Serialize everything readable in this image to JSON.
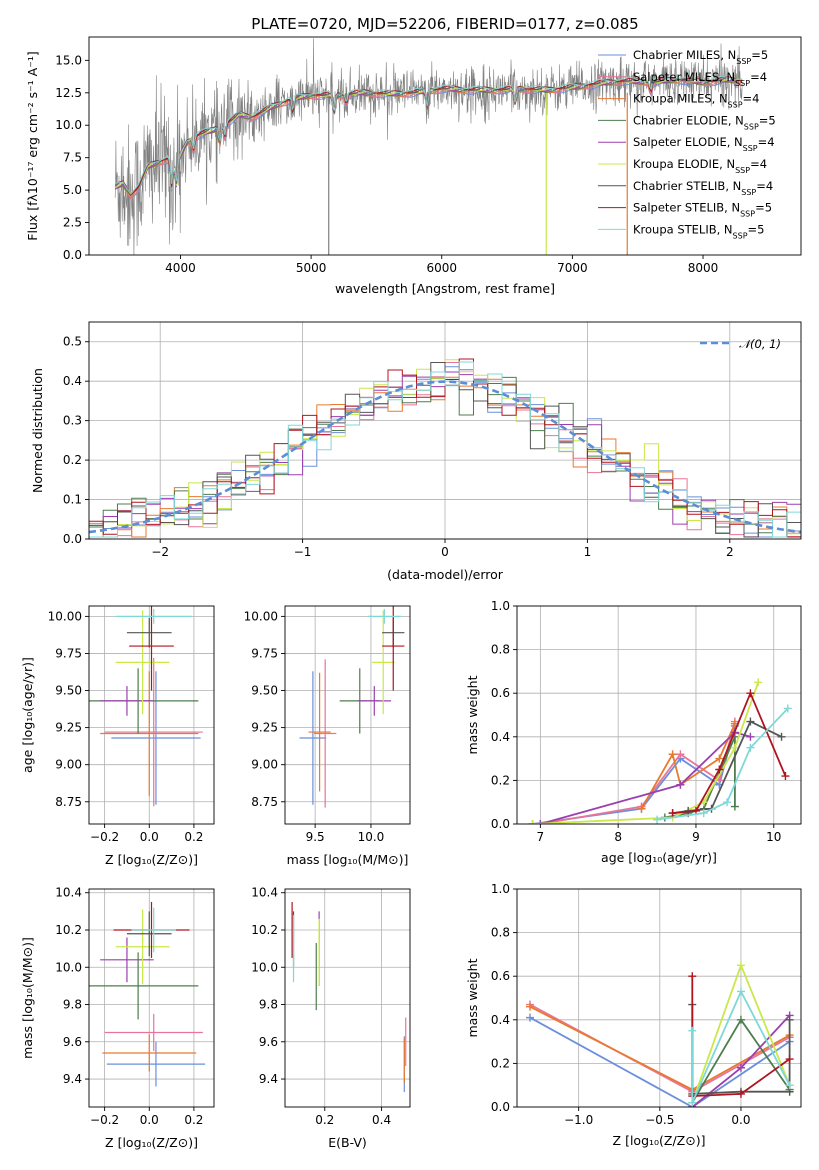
{
  "colors": {
    "chabrier_miles": "#6a8fdc",
    "salpeter_miles": "#e8749a",
    "kroupa_miles": "#e87a2e",
    "chabrier_elodie": "#4e7d4e",
    "salpeter_elodie": "#9b3fae",
    "kroupa_elodie": "#c9e84a",
    "chabrier_stelib": "#555555",
    "salpeter_stelib": "#b0141e",
    "kroupa_stelib": "#7fd8d8",
    "observed": "#808080",
    "gaussian": "#5b8ed6"
  },
  "chart_data": [
    {
      "type": "line",
      "id": "spectrum",
      "title": "PLATE=0720, MJD=52206, FIBERID=0177, z=0.085",
      "xlabel": "wavelength [Angstrom, rest frame]",
      "ylabel": "Flux [fλ10⁻¹⁷ erg cm⁻² s⁻¹ A⁻¹]",
      "xlim": [
        3300,
        8750
      ],
      "ylim": [
        0,
        16.8
      ],
      "xticks": [
        "4000",
        "5000",
        "6000",
        "7000",
        "8000"
      ],
      "yticks": [
        "0.0",
        "2.5",
        "5.0",
        "7.5",
        "10.0",
        "12.5",
        "15.0"
      ],
      "legend_position": "upper-right",
      "continuum": {
        "x": [
          3500,
          3560,
          3620,
          3680,
          3750,
          3820,
          3900,
          3960,
          4050,
          4150,
          4250,
          4350,
          4450,
          4550,
          4700,
          4850,
          5000,
          5200,
          5400,
          5600,
          5800,
          6000,
          6200,
          6400,
          6600,
          6800,
          7000,
          7200,
          7400,
          7600,
          7800,
          8000,
          8200,
          8300
        ],
        "y": [
          5.2,
          5.5,
          4.6,
          5.2,
          6.8,
          7.1,
          7.4,
          6.8,
          8.7,
          9.3,
          9.6,
          10.1,
          10.8,
          10.6,
          11.4,
          12.0,
          12.3,
          12.3,
          12.5,
          12.4,
          12.5,
          12.8,
          12.7,
          12.7,
          12.8,
          12.7,
          12.9,
          13.2,
          13.4,
          13.3,
          13.5,
          13.3,
          13.5,
          13.4
        ]
      },
      "legend": [
        {
          "label": "Chabrier MILES, N",
          "sub": "SSP",
          "n": "=5",
          "color_key": "chabrier_miles"
        },
        {
          "label": "Salpeter MILES, N",
          "sub": "SSP",
          "n": "=4",
          "color_key": "salpeter_miles"
        },
        {
          "label": "Kroupa MILES, N",
          "sub": "SSP",
          "n": "=4",
          "color_key": "kroupa_miles"
        },
        {
          "label": "Chabrier ELODIE, N",
          "sub": "SSP",
          "n": "=5",
          "color_key": "chabrier_elodie"
        },
        {
          "label": "Salpeter ELODIE, N",
          "sub": "SSP",
          "n": "=4",
          "color_key": "salpeter_elodie"
        },
        {
          "label": "Kroupa ELODIE, N",
          "sub": "SSP",
          "n": "=4",
          "color_key": "kroupa_elodie"
        },
        {
          "label": "Chabrier STELIB, N",
          "sub": "SSP",
          "n": "=4",
          "color_key": "chabrier_stelib"
        },
        {
          "label": "Salpeter STELIB, N",
          "sub": "SSP",
          "n": "=5",
          "color_key": "salpeter_stelib"
        },
        {
          "label": "Kroupa STELIB, N",
          "sub": "SSP",
          "n": "=5",
          "color_key": "kroupa_stelib"
        }
      ]
    },
    {
      "type": "area",
      "id": "residuals",
      "xlabel": "(data-model)/error",
      "ylabel": "Normed distribution",
      "xlim": [
        -2.5,
        2.5
      ],
      "ylim": [
        0,
        0.55
      ],
      "xticks": [
        "−2",
        "−1",
        "0",
        "1",
        "2"
      ],
      "yticks": [
        "0.0",
        "0.1",
        "0.2",
        "0.3",
        "0.4",
        "0.5"
      ],
      "grid": true,
      "bin_width": 0.1,
      "gaussian_label": "𝒩(0, 1)",
      "gaussian": {
        "mean": 0,
        "sigma": 1
      }
    },
    {
      "type": "scatter",
      "id": "age_vs_z",
      "xlabel": "Z [log₁₀(Z/Z⊙)]",
      "ylabel": "age  [log₁₀(age/yr)]",
      "xlim": [
        -0.27,
        0.29
      ],
      "ylim": [
        8.6,
        10.07
      ],
      "xticks": [
        "−0.2",
        "0.0",
        "0.2"
      ],
      "yticks": [
        "8.75",
        "9.00",
        "9.25",
        "9.50",
        "9.75",
        "10.00"
      ],
      "grid": true,
      "points": [
        {
          "x": 0.03,
          "y": 9.18,
          "ex": 0.2,
          "ey": 0.45,
          "color_key": "chabrier_miles"
        },
        {
          "x": 0.02,
          "y": 9.22,
          "ex": 0.22,
          "ey": 0.5,
          "color_key": "salpeter_miles"
        },
        {
          "x": 0.0,
          "y": 9.21,
          "ex": 0.22,
          "ey": 0.42,
          "color_key": "kroupa_miles"
        },
        {
          "x": -0.05,
          "y": 9.43,
          "ex": 0.27,
          "ey": 0.22,
          "color_key": "chabrier_elodie"
        },
        {
          "x": -0.1,
          "y": 9.43,
          "ex": 0.12,
          "ey": 0.1,
          "color_key": "salpeter_elodie"
        },
        {
          "x": -0.03,
          "y": 9.69,
          "ex": 0.12,
          "ey": 0.35,
          "color_key": "kroupa_elodie"
        },
        {
          "x": 0.0,
          "y": 9.89,
          "ex": 0.1,
          "ey": 0.1,
          "color_key": "chabrier_stelib"
        },
        {
          "x": 0.01,
          "y": 9.8,
          "ex": 0.1,
          "ey": 0.3,
          "color_key": "salpeter_stelib"
        },
        {
          "x": 0.02,
          "y": 10.0,
          "ex": 0.17,
          "ey": 0.05,
          "color_key": "kroupa_stelib"
        }
      ]
    },
    {
      "type": "scatter",
      "id": "age_vs_mass",
      "xlabel": "mass [log₁₀(M/M⊙)]",
      "xlim": [
        9.23,
        10.35
      ],
      "ylim": [
        8.6,
        10.07
      ],
      "xticks": [
        "9.5",
        "10.0"
      ],
      "yticks": [
        "8.75",
        "9.00",
        "9.25",
        "9.50",
        "9.75",
        "10.00"
      ],
      "grid": true,
      "points": [
        {
          "x": 9.48,
          "y": 9.18,
          "ex": 0.12,
          "ey": 0.45,
          "color_key": "chabrier_miles"
        },
        {
          "x": 9.59,
          "y": 9.21,
          "ex": 0.1,
          "ey": 0.5,
          "color_key": "salpeter_miles"
        },
        {
          "x": 9.54,
          "y": 9.22,
          "ex": 0.1,
          "ey": 0.4,
          "color_key": "kroupa_miles"
        },
        {
          "x": 9.9,
          "y": 9.43,
          "ex": 0.18,
          "ey": 0.22,
          "color_key": "chabrier_elodie"
        },
        {
          "x": 10.03,
          "y": 9.43,
          "ex": 0.15,
          "ey": 0.1,
          "color_key": "salpeter_elodie"
        },
        {
          "x": 10.11,
          "y": 9.69,
          "ex": 0.1,
          "ey": 0.35,
          "color_key": "kroupa_elodie"
        },
        {
          "x": 10.2,
          "y": 9.89,
          "ex": 0.1,
          "ey": 0.1,
          "color_key": "chabrier_stelib"
        },
        {
          "x": 10.2,
          "y": 9.8,
          "ex": 0.1,
          "ey": 0.3,
          "color_key": "salpeter_stelib"
        },
        {
          "x": 10.12,
          "y": 10.0,
          "ex": 0.15,
          "ey": 0.05,
          "color_key": "kroupa_stelib"
        }
      ]
    },
    {
      "type": "line",
      "id": "weight_vs_age",
      "xlabel": "age  [log₁₀(age/yr)]",
      "ylabel": "mass weight",
      "xlim": [
        6.7,
        10.35
      ],
      "ylim": [
        0,
        1
      ],
      "xticks": [
        "7",
        "8",
        "9",
        "10"
      ],
      "yticks": [
        "0.0",
        "0.2",
        "0.4",
        "0.6",
        "0.8",
        "1.0"
      ],
      "grid": true,
      "series": [
        {
          "color_key": "chabrier_miles",
          "x": [
            6.9,
            8.3,
            8.8,
            9.3,
            9.5
          ],
          "y": [
            0.0,
            0.07,
            0.3,
            0.18,
            0.45
          ]
        },
        {
          "color_key": "salpeter_miles",
          "x": [
            7.0,
            8.3,
            8.8,
            9.3,
            9.5
          ],
          "y": [
            0.0,
            0.08,
            0.32,
            0.2,
            0.47
          ]
        },
        {
          "color_key": "kroupa_miles",
          "x": [
            8.3,
            8.7,
            8.8,
            9.3,
            9.5
          ],
          "y": [
            0.07,
            0.32,
            0.18,
            0.3,
            0.46
          ]
        },
        {
          "color_key": "chabrier_elodie",
          "x": [
            8.6,
            8.9,
            9.1,
            9.5,
            9.5
          ],
          "y": [
            0.03,
            0.05,
            0.07,
            0.4,
            0.08
          ]
        },
        {
          "color_key": "salpeter_elodie",
          "x": [
            7.0,
            8.8,
            9.5,
            9.7
          ],
          "y": [
            0.0,
            0.18,
            0.42,
            0.4
          ]
        },
        {
          "color_key": "kroupa_elodie",
          "x": [
            6.9,
            8.7,
            9.1,
            9.5,
            9.8
          ],
          "y": [
            0.0,
            0.03,
            0.1,
            0.35,
            0.65
          ]
        },
        {
          "color_key": "chabrier_stelib",
          "x": [
            8.7,
            8.9,
            9.2,
            9.7,
            10.1
          ],
          "y": [
            0.05,
            0.06,
            0.07,
            0.47,
            0.4
          ]
        },
        {
          "color_key": "salpeter_stelib",
          "x": [
            8.7,
            9.0,
            9.3,
            9.7,
            10.15
          ],
          "y": [
            0.05,
            0.06,
            0.25,
            0.6,
            0.22
          ]
        },
        {
          "color_key": "kroupa_stelib",
          "x": [
            8.5,
            9.1,
            9.4,
            9.7,
            10.18
          ],
          "y": [
            0.02,
            0.05,
            0.1,
            0.35,
            0.53
          ]
        }
      ]
    },
    {
      "type": "scatter",
      "id": "mass_vs_z",
      "xlabel": "Z [log₁₀(Z/Z⊙)]",
      "ylabel": "mass [log₁₀(M/M⊙)]",
      "xlim": [
        -0.27,
        0.29
      ],
      "ylim": [
        9.25,
        10.42
      ],
      "xticks": [
        "−0.2",
        "0.0",
        "0.2"
      ],
      "yticks": [
        "9.4",
        "9.6",
        "9.8",
        "10.0",
        "10.2",
        "10.4"
      ],
      "grid": true,
      "points": [
        {
          "x": 0.03,
          "y": 9.48,
          "ex": 0.22,
          "ey": 0.12,
          "color_key": "chabrier_miles"
        },
        {
          "x": 0.02,
          "y": 9.65,
          "ex": 0.22,
          "ey": 0.1,
          "color_key": "salpeter_miles"
        },
        {
          "x": 0.0,
          "y": 9.54,
          "ex": 0.21,
          "ey": 0.1,
          "color_key": "kroupa_miles"
        },
        {
          "x": -0.05,
          "y": 9.9,
          "ex": 0.27,
          "ey": 0.18,
          "color_key": "chabrier_elodie"
        },
        {
          "x": -0.1,
          "y": 10.04,
          "ex": 0.12,
          "ey": 0.12,
          "color_key": "salpeter_elodie"
        },
        {
          "x": -0.03,
          "y": 10.11,
          "ex": 0.12,
          "ey": 0.2,
          "color_key": "kroupa_elodie"
        },
        {
          "x": 0.0,
          "y": 10.18,
          "ex": 0.1,
          "ey": 0.12,
          "color_key": "chabrier_stelib"
        },
        {
          "x": 0.01,
          "y": 10.2,
          "ex": 0.17,
          "ey": 0.15,
          "color_key": "salpeter_stelib"
        },
        {
          "x": 0.02,
          "y": 10.2,
          "ex": 0.1,
          "ey": 0.12,
          "color_key": "kroupa_stelib"
        }
      ]
    },
    {
      "type": "scatter",
      "id": "mass_vs_ebv",
      "xlabel": "E(B-V)",
      "xlim": [
        0.06,
        0.5
      ],
      "ylim": [
        9.25,
        10.42
      ],
      "xticks": [
        "0.2",
        "0.4"
      ],
      "yticks": [
        "9.4",
        "9.6",
        "9.8",
        "10.0",
        "10.2",
        "10.4"
      ],
      "grid": true,
      "points": [
        {
          "x": 0.09,
          "y": 10.15,
          "ex": 0,
          "ey": 0.15,
          "color_key": "chabrier_stelib"
        },
        {
          "x": 0.085,
          "y": 10.2,
          "ex": 0,
          "ey": 0.15,
          "color_key": "salpeter_stelib"
        },
        {
          "x": 0.09,
          "y": 10.1,
          "ex": 0,
          "ey": 0.18,
          "color_key": "kroupa_stelib"
        },
        {
          "x": 0.17,
          "y": 9.95,
          "ex": 0,
          "ey": 0.18,
          "color_key": "chabrier_elodie"
        },
        {
          "x": 0.18,
          "y": 10.1,
          "ex": 0,
          "ey": 0.2,
          "color_key": "salpeter_elodie"
        },
        {
          "x": 0.18,
          "y": 10.08,
          "ex": 0,
          "ey": 0.18,
          "color_key": "kroupa_elodie"
        },
        {
          "x": 0.48,
          "y": 9.48,
          "ex": 0,
          "ey": 0.15,
          "color_key": "chabrier_miles"
        },
        {
          "x": 0.485,
          "y": 9.6,
          "ex": 0,
          "ey": 0.13,
          "color_key": "salpeter_miles"
        },
        {
          "x": 0.48,
          "y": 9.5,
          "ex": 0,
          "ey": 0.12,
          "color_key": "kroupa_miles"
        }
      ]
    },
    {
      "type": "line",
      "id": "weight_vs_z",
      "xlabel": "Z [log₁₀(Z/Z⊙)]",
      "ylabel": "mass weight",
      "xlim": [
        -1.38,
        0.37
      ],
      "ylim": [
        0,
        1
      ],
      "xticks": [
        "−1.0",
        "−0.5",
        "0.0"
      ],
      "yticks": [
        "0.0",
        "0.2",
        "0.4",
        "0.6",
        "0.8",
        "1.0"
      ],
      "grid": true,
      "series": [
        {
          "color_key": "chabrier_miles",
          "x": [
            -1.3,
            -0.3,
            0.3
          ],
          "y": [
            0.41,
            0.0,
            0.3
          ]
        },
        {
          "color_key": "salpeter_miles",
          "x": [
            -1.3,
            -0.3,
            0.3
          ],
          "y": [
            0.47,
            0.07,
            0.32
          ]
        },
        {
          "color_key": "kroupa_miles",
          "x": [
            -1.3,
            -0.3,
            0.3
          ],
          "y": [
            0.46,
            0.08,
            0.33
          ]
        },
        {
          "color_key": "chabrier_elodie",
          "x": [
            -0.3,
            0.0,
            0.3
          ],
          "y": [
            0.02,
            0.4,
            0.08
          ]
        },
        {
          "color_key": "salpeter_elodie",
          "x": [
            -0.3,
            0.0,
            0.3
          ],
          "y": [
            0.0,
            0.18,
            0.42
          ]
        },
        {
          "color_key": "kroupa_elodie",
          "x": [
            -0.3,
            0.0,
            0.3
          ],
          "y": [
            0.02,
            0.65,
            0.1
          ]
        },
        {
          "color_key": "chabrier_stelib",
          "x": [
            -0.3,
            -0.3,
            0.0,
            0.3,
            0.3
          ],
          "y": [
            0.47,
            0.06,
            0.07,
            0.07,
            0.4
          ]
        },
        {
          "color_key": "salpeter_stelib",
          "x": [
            -0.3,
            -0.3,
            0.0,
            0.3
          ],
          "y": [
            0.6,
            0.05,
            0.06,
            0.22
          ]
        },
        {
          "color_key": "kroupa_stelib",
          "x": [
            -0.3,
            -0.3,
            0.0,
            0.3
          ],
          "y": [
            0.35,
            0.02,
            0.53,
            0.1
          ]
        }
      ]
    }
  ]
}
